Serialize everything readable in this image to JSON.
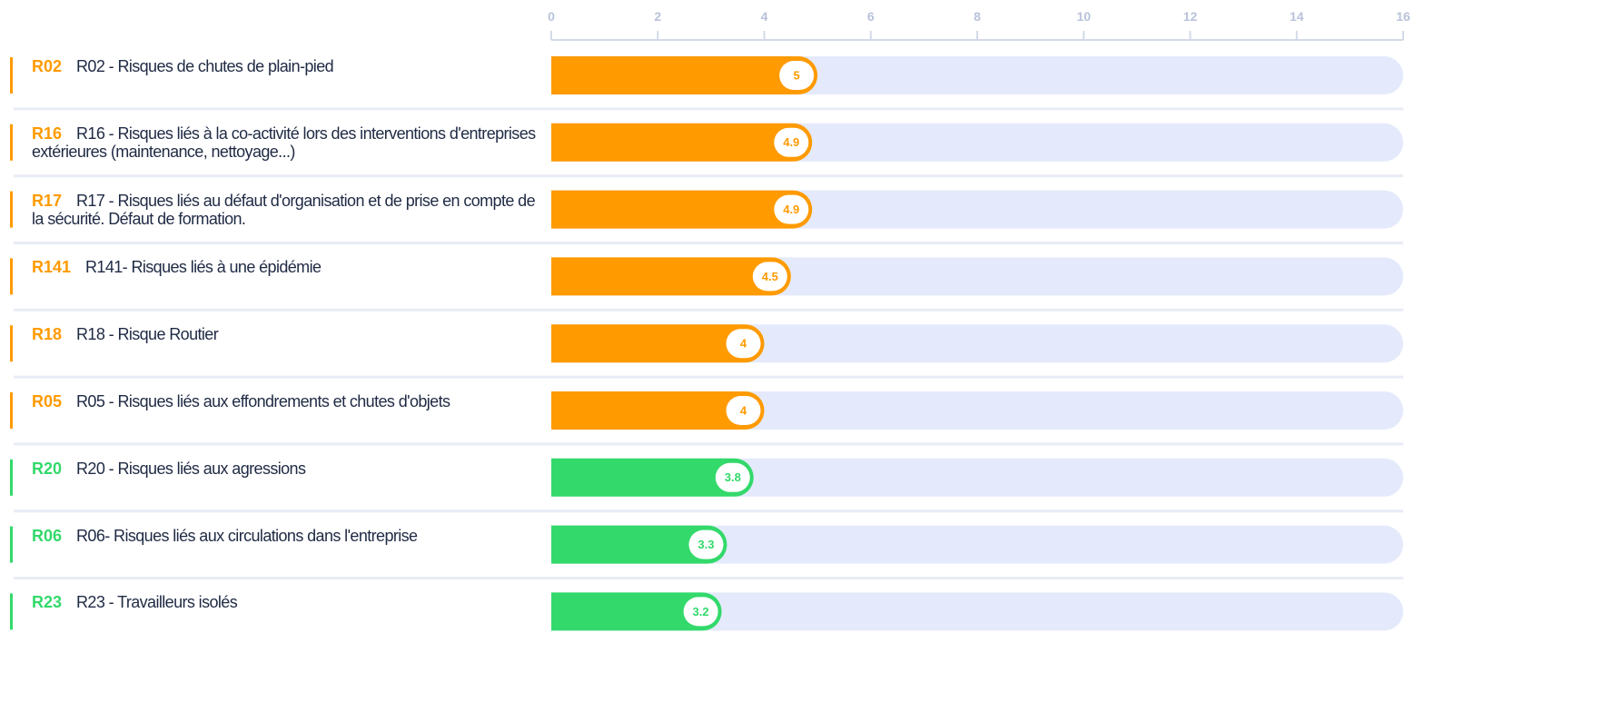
{
  "chart_data": {
    "type": "bar",
    "orientation": "horizontal",
    "codes": [
      "R02",
      "R16",
      "R17",
      "R141",
      "R18",
      "R05",
      "R20",
      "R06",
      "R23"
    ],
    "categories": [
      "R02 - Risques de chutes de plain-pied",
      "R16 - Risques liés à la co-activité lors des interventions d'entreprises extérieures (maintenance, nettoyage...)",
      "R17 - Risques liés au défaut d'organisation et de prise en compte de la sécurité. Défaut de formation.",
      "R141- Risques liés à une épidémie",
      "R18 - Risque Routier",
      "R05 - Risques liés aux effondrements et chutes d'objets",
      "R20 - Risques liés aux agressions",
      "R06- Risques liés aux circulations dans l'entreprise",
      "R23 - Travailleurs isolés"
    ],
    "values": [
      5,
      4.9,
      4.9,
      4.5,
      4,
      4,
      3.8,
      3.3,
      3.2
    ],
    "colors": [
      "#ff9a00",
      "#ff9a00",
      "#ff9a00",
      "#ff9a00",
      "#ff9a00",
      "#ff9a00",
      "#33d96b",
      "#33d96b",
      "#33d96b"
    ],
    "xlim": [
      0,
      16
    ],
    "xticks": [
      0,
      2,
      4,
      6,
      8,
      10,
      12,
      14,
      16
    ]
  }
}
